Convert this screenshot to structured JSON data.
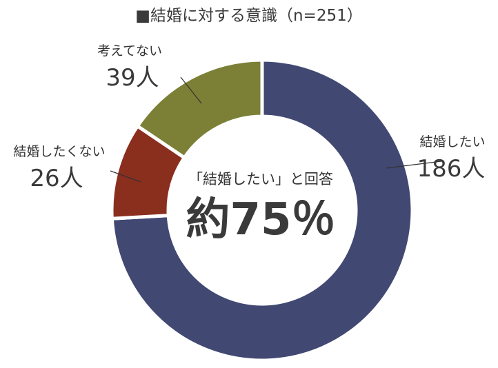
{
  "chart_data": {
    "type": "pie",
    "variant": "donut",
    "title": "■結婚に対する意識（n=251）",
    "categories": [
      "結婚したい",
      "結婚したくない",
      "考えてない"
    ],
    "values": [
      186,
      26,
      39
    ],
    "count_labels": [
      "186人",
      "26人",
      "39人"
    ],
    "colors": [
      "#414872",
      "#8a2e1e",
      "#7b8036"
    ],
    "center_text": "「結婚したい」と回答",
    "center_value": "約75％",
    "start_angle": "12 o'clock",
    "direction": "clockwise",
    "legend": "none"
  }
}
